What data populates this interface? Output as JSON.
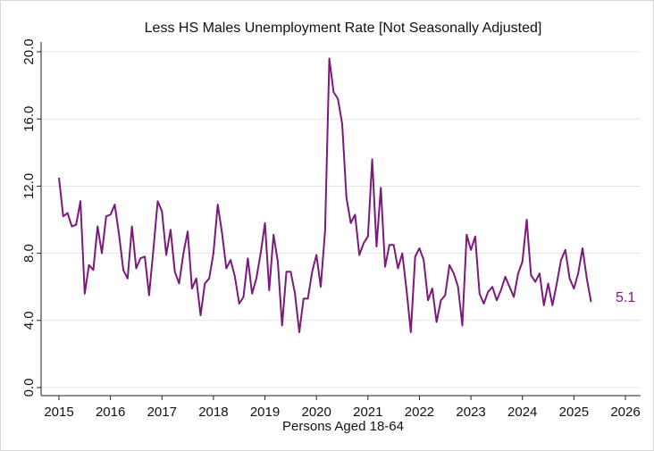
{
  "chart_data": {
    "type": "line",
    "title": "Less HS Males Unemployment Rate [Not Seasonally Adjusted]",
    "xlabel": "Persons Aged 18-64",
    "ylabel": "",
    "xlim": [
      2015,
      2026
    ],
    "ylim": [
      0,
      20
    ],
    "x_ticks": [
      "2015",
      "2016",
      "2017",
      "2018",
      "2019",
      "2020",
      "2021",
      "2022",
      "2023",
      "2024",
      "2025",
      "2026"
    ],
    "y_ticks": [
      "0.0",
      "4.0",
      "8.0",
      "12.0",
      "16.0",
      "20.0"
    ],
    "grid": true,
    "line_color": "#7a1a7a",
    "end_label": "5.1",
    "series": [
      {
        "x": [
          2015.0,
          2015.083,
          2015.167,
          2015.25,
          2015.333,
          2015.417,
          2015.5,
          2015.583,
          2015.667,
          2015.75,
          2015.833,
          2015.917,
          2016.0,
          2016.083,
          2016.167,
          2016.25,
          2016.333,
          2016.417,
          2016.5,
          2016.583,
          2016.667,
          2016.75,
          2016.833,
          2016.917,
          2017.0,
          2017.083,
          2017.167,
          2017.25,
          2017.333,
          2017.417,
          2017.5,
          2017.583,
          2017.667,
          2017.75,
          2017.833,
          2017.917,
          2018.0,
          2018.083,
          2018.167,
          2018.25,
          2018.333,
          2018.417,
          2018.5,
          2018.583,
          2018.667,
          2018.75,
          2018.833,
          2018.917,
          2019.0,
          2019.083,
          2019.167,
          2019.25,
          2019.333,
          2019.417,
          2019.5,
          2019.583,
          2019.667,
          2019.75,
          2019.833,
          2019.917,
          2020.0,
          2020.083,
          2020.167,
          2020.25,
          2020.333,
          2020.417,
          2020.5,
          2020.583,
          2020.667,
          2020.75,
          2020.833,
          2020.917,
          2021.0,
          2021.083,
          2021.167,
          2021.25,
          2021.333,
          2021.417,
          2021.5,
          2021.583,
          2021.667,
          2021.75,
          2021.833,
          2021.917,
          2022.0,
          2022.083,
          2022.167,
          2022.25,
          2022.333,
          2022.417,
          2022.5,
          2022.583,
          2022.667,
          2022.75,
          2022.833,
          2022.917,
          2023.0,
          2023.083,
          2023.167,
          2023.25,
          2023.333,
          2023.417,
          2023.5,
          2023.583,
          2023.667,
          2023.75,
          2023.833,
          2023.917,
          2024.0,
          2024.083,
          2024.167,
          2024.25,
          2024.333,
          2024.417,
          2024.5,
          2024.583,
          2024.667,
          2024.75,
          2024.833,
          2024.917,
          2025.0,
          2025.083,
          2025.167,
          2025.25,
          2025.333
        ],
        "values": [
          12.5,
          10.2,
          10.4,
          9.6,
          9.7,
          11.1,
          5.6,
          7.3,
          7.0,
          9.6,
          8.0,
          10.2,
          10.3,
          10.9,
          9.1,
          7.0,
          6.5,
          9.6,
          7.1,
          7.7,
          7.8,
          5.5,
          8.2,
          11.1,
          10.5,
          7.9,
          9.4,
          6.9,
          6.2,
          8.0,
          9.3,
          5.9,
          6.5,
          4.3,
          6.2,
          6.5,
          8.0,
          10.9,
          9.2,
          7.1,
          7.6,
          6.6,
          5.0,
          5.4,
          7.7,
          5.6,
          6.5,
          8.0,
          9.8,
          5.8,
          9.1,
          7.5,
          3.7,
          6.9,
          6.9,
          5.6,
          3.3,
          5.3,
          5.3,
          6.9,
          7.9,
          6.0,
          9.3,
          19.6,
          17.6,
          17.2,
          15.7,
          11.3,
          9.8,
          10.3,
          7.9,
          8.6,
          9.0,
          13.6,
          8.4,
          11.9,
          7.2,
          8.5,
          8.5,
          7.1,
          8.0,
          5.8,
          3.3,
          7.8,
          8.3,
          7.6,
          5.2,
          5.9,
          3.9,
          5.2,
          5.5,
          7.3,
          6.8,
          6.0,
          3.7,
          9.1,
          8.2,
          9.0,
          5.6,
          5.0,
          5.7,
          6.0,
          5.2,
          5.8,
          6.6,
          6.0,
          5.4,
          6.8,
          7.5,
          10.0,
          6.7,
          6.3,
          6.8,
          4.9,
          6.2,
          4.9,
          6.2,
          7.6,
          8.2,
          6.5,
          5.9,
          6.8,
          8.3,
          6.5,
          5.1
        ]
      }
    ]
  }
}
